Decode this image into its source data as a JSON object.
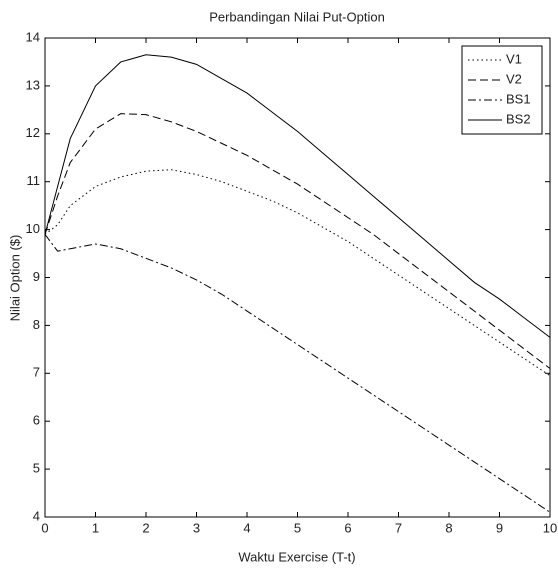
{
  "chart_data": {
    "type": "line",
    "title": "Perbandingan Nilai Put-Option",
    "x_label": "Waktu Exercise (T-t)",
    "y_label": "Nilai Option ($)",
    "x": [
      0,
      0.25,
      0.5,
      1,
      1.5,
      2,
      2.5,
      3,
      3.5,
      4,
      4.5,
      5,
      5.5,
      6,
      6.5,
      7,
      7.5,
      8,
      8.5,
      9,
      9.5,
      10
    ],
    "series": [
      {
        "name": "V1",
        "color": "#000000",
        "dash": "dotted",
        "values": [
          9.9,
          10.1,
          10.5,
          10.9,
          11.1,
          11.22,
          11.25,
          11.15,
          11.0,
          10.8,
          10.6,
          10.35,
          10.05,
          9.75,
          9.4,
          9.05,
          8.7,
          8.35,
          8.0,
          7.65,
          7.3,
          6.95
        ]
      },
      {
        "name": "V2",
        "color": "#000000",
        "dash": "dashed",
        "values": [
          9.9,
          10.7,
          11.4,
          12.1,
          12.42,
          12.4,
          12.25,
          12.05,
          11.8,
          11.55,
          11.25,
          10.95,
          10.6,
          10.25,
          9.9,
          9.5,
          9.1,
          8.7,
          8.3,
          7.9,
          7.5,
          7.1
        ]
      },
      {
        "name": "BS1",
        "color": "#000000",
        "dash": "dashdot",
        "values": [
          9.9,
          9.55,
          9.6,
          9.7,
          9.6,
          9.4,
          9.2,
          8.95,
          8.65,
          8.3,
          7.95,
          7.6,
          7.25,
          6.9,
          6.55,
          6.2,
          5.85,
          5.5,
          5.15,
          4.8,
          4.45,
          4.1
        ]
      },
      {
        "name": "BS2",
        "color": "#000000",
        "dash": "solid",
        "values": [
          9.9,
          10.9,
          11.9,
          13.0,
          13.5,
          13.65,
          13.6,
          13.45,
          13.15,
          12.85,
          12.45,
          12.05,
          11.6,
          11.15,
          10.7,
          10.25,
          9.8,
          9.35,
          8.9,
          8.55,
          8.15,
          7.75
        ]
      }
    ],
    "xlim": [
      0,
      10
    ],
    "xticks": [
      0,
      1,
      2,
      3,
      4,
      5,
      6,
      7,
      8,
      9,
      10
    ],
    "ylim": [
      4,
      14
    ],
    "yticks": [
      4,
      5,
      6,
      7,
      8,
      9,
      10,
      11,
      12,
      13,
      14
    ],
    "grid": false,
    "legend": "top-right"
  }
}
